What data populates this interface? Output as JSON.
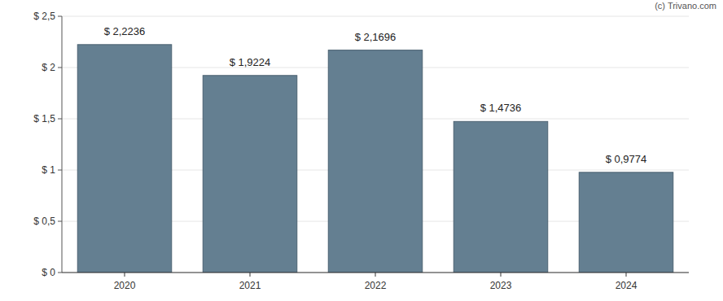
{
  "chart_data": {
    "type": "bar",
    "annotations": [
      "(c) Trivano.com"
    ],
    "categories": [
      "2020",
      "2021",
      "2022",
      "2023",
      "2024"
    ],
    "values": [
      2.2236,
      1.9224,
      2.1696,
      1.4736,
      0.9774
    ],
    "value_labels": [
      "$ 2,2236",
      "$ 1,9224",
      "$ 2,1696",
      "$ 1,4736",
      "$ 0,9774"
    ],
    "data_labels": true,
    "color": "#647f91",
    "ylim": [
      0,
      2.5
    ],
    "yticks": [
      {
        "value": 0,
        "label": "$ 0"
      },
      {
        "value": 0.5,
        "label": "$ 0,5"
      },
      {
        "value": 1,
        "label": "$ 1"
      },
      {
        "value": 1.5,
        "label": "$ 1,5"
      },
      {
        "value": 2,
        "label": "$ 2"
      },
      {
        "value": 2.5,
        "label": "$ 2,5"
      }
    ],
    "grid": true
  }
}
